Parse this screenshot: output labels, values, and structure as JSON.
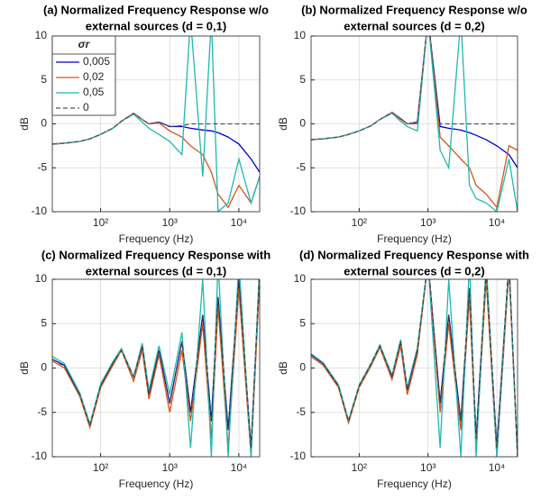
{
  "chart_data": [
    {
      "type": "line",
      "title": [
        "(a) Normalized Frequency Response w/o",
        "external sources (d = 0,1)"
      ],
      "xlabel": "Frequency (Hz)",
      "ylabel": "dB",
      "xscale": "log",
      "xlim": [
        20,
        20000
      ],
      "ylim": [
        -10,
        10
      ],
      "xticks": [
        {
          "value": 100,
          "label": "10²"
        },
        {
          "value": 1000,
          "label": "10³"
        },
        {
          "value": 10000,
          "label": "10⁴"
        }
      ],
      "yticks": [
        -10,
        -5,
        0,
        5,
        10
      ],
      "grid": true,
      "legend": "upper left",
      "legend_title": "σr",
      "x": [
        20,
        30,
        50,
        70,
        100,
        150,
        200,
        300,
        400,
        500,
        700,
        1000,
        1500,
        2000,
        3000,
        4000,
        5000,
        7000,
        10000,
        15000,
        20000
      ],
      "series": [
        {
          "name": "0,005",
          "color": "#0000cc",
          "linestyle": "solid",
          "values": [
            -2.3,
            -2.2,
            -2,
            -1.7,
            -1.2,
            -0.5,
            0.3,
            1.2,
            0.5,
            0,
            0.2,
            -0.3,
            -0.3,
            -0.5,
            -0.7,
            -0.8,
            -1,
            -1.5,
            -2.3,
            -4,
            -5.5
          ]
        },
        {
          "name": "0,02",
          "color": "#d95319",
          "linestyle": "solid",
          "values": [
            -2.3,
            -2.2,
            -2,
            -1.7,
            -1.2,
            -0.5,
            0.3,
            1.2,
            0.5,
            0,
            0.1,
            -0.8,
            -1.5,
            -2.5,
            -3.5,
            -5.5,
            -8,
            -9.5,
            -7,
            -9,
            -6
          ]
        },
        {
          "name": "0,05",
          "color": "#1fb8b0",
          "linestyle": "solid",
          "values": [
            -2.3,
            -2.2,
            -2,
            -1.7,
            -1.2,
            -0.5,
            0.3,
            1.1,
            0.2,
            -0.5,
            -1.2,
            -2,
            -3.5,
            12,
            -6,
            12,
            -10,
            -9,
            -4,
            -9,
            -6
          ]
        },
        {
          "name": "0",
          "color": "#555555",
          "linestyle": "dashed",
          "values": [
            -2.3,
            -2.2,
            -2,
            -1.7,
            -1.2,
            -0.5,
            0.3,
            1.2,
            0.5,
            0,
            0.2,
            -0.3,
            -0.2,
            0,
            0,
            0,
            0,
            0,
            0,
            0,
            0
          ]
        }
      ]
    },
    {
      "type": "line",
      "title": [
        "(b) Normalized Frequency Response w/o",
        "external sources (d = 0,2)"
      ],
      "xlabel": "Frequency (Hz)",
      "ylabel": "dB",
      "xscale": "log",
      "xlim": [
        20,
        20000
      ],
      "ylim": [
        -10,
        10
      ],
      "xticks": [
        {
          "value": 100,
          "label": "10²"
        },
        {
          "value": 1000,
          "label": "10³"
        },
        {
          "value": 10000,
          "label": "10⁴"
        }
      ],
      "yticks": [
        -10,
        -5,
        0,
        5,
        10
      ],
      "grid": true,
      "x": [
        20,
        30,
        50,
        70,
        100,
        150,
        200,
        300,
        400,
        500,
        700,
        1000,
        1500,
        2000,
        3000,
        4000,
        5000,
        7000,
        10000,
        15000,
        20000
      ],
      "series": [
        {
          "color": "#0000cc",
          "linestyle": "solid",
          "values": [
            -1.8,
            -1.7,
            -1.5,
            -1.2,
            -0.8,
            -0.2,
            0.5,
            1.3,
            0.6,
            0,
            0.2,
            12,
            -0.3,
            -0.5,
            -0.7,
            -1,
            -1.3,
            -1.8,
            -2.5,
            -3.5,
            -5
          ]
        },
        {
          "color": "#d95319",
          "linestyle": "solid",
          "values": [
            -1.8,
            -1.7,
            -1.5,
            -1.2,
            -0.8,
            -0.2,
            0.5,
            1.3,
            0.5,
            0,
            0,
            12,
            -1.5,
            -2.5,
            -4,
            -5,
            -7,
            -8,
            -9.5,
            -2.5,
            -3
          ]
        },
        {
          "color": "#1fb8b0",
          "linestyle": "solid",
          "values": [
            -1.8,
            -1.7,
            -1.5,
            -1.2,
            -0.8,
            -0.2,
            0.5,
            1.2,
            0.3,
            -0.3,
            -0.8,
            12,
            -3,
            -5,
            12,
            -7,
            -8.5,
            -9,
            -10,
            -4,
            -10
          ]
        },
        {
          "color": "#555555",
          "linestyle": "dashed",
          "values": [
            -1.8,
            -1.7,
            -1.5,
            -1.2,
            -0.8,
            -0.2,
            0.5,
            1.3,
            0.6,
            0,
            0.2,
            12,
            0,
            0,
            0,
            0,
            0,
            0,
            0,
            0,
            0
          ]
        }
      ]
    },
    {
      "type": "line",
      "title": [
        "(c) Normalized Frequency Response with",
        "external sources (d = 0,1)"
      ],
      "xlabel": "Frequency (Hz)",
      "ylabel": "dB",
      "xscale": "log",
      "xlim": [
        20,
        20000
      ],
      "ylim": [
        -10,
        10
      ],
      "xticks": [
        {
          "value": 100,
          "label": "10²"
        },
        {
          "value": 1000,
          "label": "10³"
        },
        {
          "value": 10000,
          "label": "10⁴"
        }
      ],
      "yticks": [
        -10,
        -5,
        0,
        5,
        10
      ],
      "grid": true,
      "x": [
        20,
        30,
        50,
        70,
        100,
        150,
        200,
        300,
        400,
        500,
        700,
        1000,
        1500,
        2000,
        3000,
        4000,
        5000,
        7000,
        10000,
        15000,
        20000
      ],
      "series": [
        {
          "color": "#0000cc",
          "linestyle": "solid",
          "values": [
            1,
            0.3,
            -3,
            -6.5,
            -2,
            0.5,
            2,
            -1,
            2.5,
            -3,
            2,
            -4,
            3,
            -5,
            6,
            -6,
            8,
            -7,
            10,
            -9,
            11
          ]
        },
        {
          "color": "#d95319",
          "linestyle": "solid",
          "values": [
            0.8,
            0,
            -3.2,
            -6.7,
            -2.2,
            0.3,
            2,
            -1.5,
            2,
            -3.5,
            1.5,
            -5,
            2,
            -6,
            5,
            -8,
            7,
            -9,
            9,
            -10,
            10
          ]
        },
        {
          "color": "#1fb8b0",
          "linestyle": "solid",
          "values": [
            1.3,
            0.5,
            -2.8,
            -6.3,
            -1.8,
            0.7,
            2.2,
            -1,
            2.8,
            -2.5,
            2.5,
            -3,
            4,
            -9,
            10,
            -10,
            12,
            -10,
            12,
            -10,
            12
          ]
        },
        {
          "color": "#444444",
          "linestyle": "dashed",
          "values": [
            1,
            0.2,
            -3,
            -6.5,
            -2,
            0.5,
            2,
            -1,
            2.5,
            -3,
            2,
            -4,
            3,
            -5,
            6,
            -6,
            8,
            -7,
            10,
            -9,
            11
          ]
        }
      ]
    },
    {
      "type": "line",
      "title": [
        "(d) Normalized Frequency Response with",
        "external sources (d = 0,2)"
      ],
      "xlabel": "Frequency (Hz)",
      "ylabel": "dB",
      "xscale": "log",
      "xlim": [
        20,
        20000
      ],
      "ylim": [
        -10,
        10
      ],
      "xticks": [
        {
          "value": 100,
          "label": "10²"
        },
        {
          "value": 1000,
          "label": "10³"
        },
        {
          "value": 10000,
          "label": "10⁴"
        }
      ],
      "yticks": [
        -10,
        -5,
        0,
        5,
        10
      ],
      "grid": true,
      "x": [
        20,
        30,
        50,
        70,
        100,
        150,
        200,
        300,
        400,
        500,
        700,
        1000,
        1500,
        2000,
        3000,
        4000,
        5000,
        7000,
        10000,
        15000,
        20000
      ],
      "series": [
        {
          "color": "#0000cc",
          "linestyle": "solid",
          "values": [
            1.5,
            0.5,
            -2,
            -6,
            -2,
            0.5,
            2.5,
            -1,
            3,
            -2.5,
            2,
            12,
            -4,
            6,
            -6,
            9,
            -8,
            11,
            -9,
            12,
            -10
          ]
        },
        {
          "color": "#d95319",
          "linestyle": "solid",
          "values": [
            1.3,
            0.3,
            -2.2,
            -6.2,
            -2.2,
            0.3,
            2.3,
            -1.3,
            2.5,
            -3,
            1.5,
            12,
            -5,
            5,
            -7,
            8,
            -9,
            10,
            -10,
            11,
            -10
          ]
        },
        {
          "color": "#1fb8b0",
          "linestyle": "solid",
          "values": [
            1.6,
            0.6,
            -1.9,
            -5.9,
            -1.9,
            0.6,
            2.6,
            -0.8,
            3.2,
            -2.2,
            2.3,
            12,
            -9,
            10,
            -10,
            12,
            -10,
            12,
            -10,
            12,
            -10
          ]
        },
        {
          "color": "#444444",
          "linestyle": "dashed",
          "values": [
            1.5,
            0.5,
            -2,
            -6,
            -2,
            0.5,
            2.5,
            -1,
            3,
            -2.5,
            2,
            12,
            -4,
            6,
            -6,
            9,
            -8,
            11,
            -9,
            12,
            -10
          ]
        }
      ]
    }
  ]
}
